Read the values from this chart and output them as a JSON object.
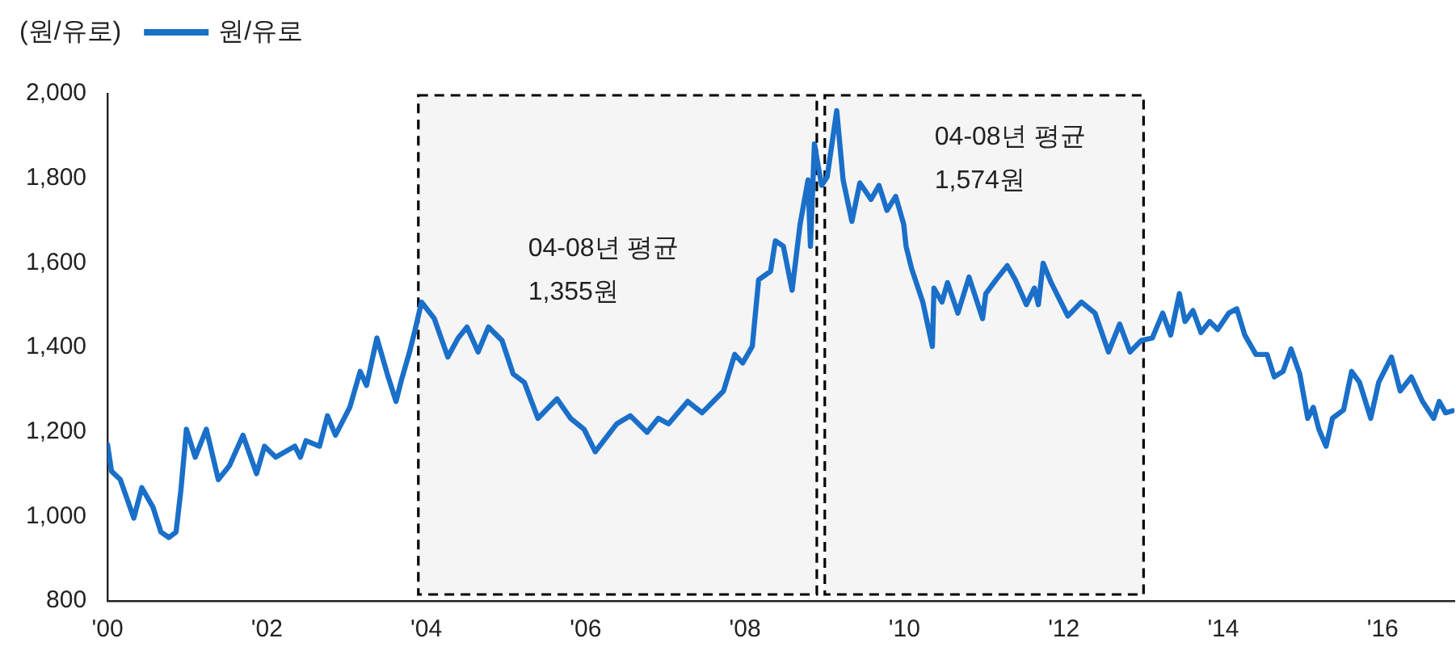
{
  "chart_data": {
    "type": "line",
    "ylabel": "(원/유로)",
    "legend": "top left",
    "grid": false,
    "xlim": [
      2000,
      2016.9
    ],
    "xticks": [
      {
        "value": 2000,
        "label": "'00"
      },
      {
        "value": 2002,
        "label": "'02"
      },
      {
        "value": 2004,
        "label": "'04"
      },
      {
        "value": 2006,
        "label": "'06"
      },
      {
        "value": 2008,
        "label": "'08"
      },
      {
        "value": 2010,
        "label": "'10"
      },
      {
        "value": 2012,
        "label": "'12"
      },
      {
        "value": 2014,
        "label": "'14"
      },
      {
        "value": 2016,
        "label": "'16"
      }
    ],
    "ylim": [
      800,
      2000
    ],
    "yticks": [
      {
        "value": 800,
        "label": "800"
      },
      {
        "value": 1000,
        "label": "1,000"
      },
      {
        "value": 1200,
        "label": "1,200"
      },
      {
        "value": 1400,
        "label": "1,400"
      },
      {
        "value": 1600,
        "label": "1,600"
      },
      {
        "value": 1800,
        "label": "1,800"
      },
      {
        "value": 2000,
        "label": "2,000"
      }
    ],
    "bands": [
      {
        "axis": "x",
        "from": 2003.9,
        "to": 2008.9,
        "label": "04-08년 평균\n1,355원",
        "color": "#000000"
      },
      {
        "axis": "x",
        "from": 2009.0,
        "to": 2013.0,
        "label": "04-08년 평균\n1,574원",
        "color": "#000000"
      }
    ],
    "series": [
      {
        "name": "원/유로",
        "color": "#1a6fc9",
        "x": [
          2000.0,
          2000.05,
          2000.16,
          2000.33,
          2000.43,
          2000.57,
          2000.67,
          2000.77,
          2000.86,
          2000.92,
          2000.99,
          2001.1,
          2001.24,
          2001.39,
          2001.53,
          2001.7,
          2001.87,
          2001.97,
          2002.11,
          2002.35,
          2002.42,
          2002.49,
          2002.66,
          2002.76,
          2002.86,
          2003.04,
          2003.17,
          2003.25,
          2003.38,
          2003.51,
          2003.62,
          2003.69,
          2003.79,
          2003.86,
          2003.94,
          2004.1,
          2004.27,
          2004.4,
          2004.51,
          2004.65,
          2004.78,
          2004.95,
          2005.09,
          2005.23,
          2005.4,
          2005.64,
          2005.81,
          2005.98,
          2006.12,
          2006.39,
          2006.56,
          2006.77,
          2006.91,
          2007.04,
          2007.28,
          2007.46,
          2007.73,
          2007.87,
          2007.97,
          2008.09,
          2008.17,
          2008.32,
          2008.38,
          2008.48,
          2008.59,
          2008.69,
          2008.79,
          2008.82,
          2008.87,
          2008.96,
          2009.03,
          2009.15,
          2009.23,
          2009.34,
          2009.44,
          2009.58,
          2009.68,
          2009.78,
          2009.89,
          2009.99,
          2010.02,
          2010.09,
          2010.23,
          2010.35,
          2010.37,
          2010.47,
          2010.54,
          2010.67,
          2010.81,
          2010.98,
          2011.02,
          2011.15,
          2011.29,
          2011.39,
          2011.53,
          2011.63,
          2011.68,
          2011.74,
          2011.84,
          2012.05,
          2012.22,
          2012.39,
          2012.56,
          2012.7,
          2012.83,
          2012.97,
          2013.11,
          2013.24,
          2013.34,
          2013.45,
          2013.52,
          2013.62,
          2013.72,
          2013.83,
          2013.93,
          2014.07,
          2014.17,
          2014.27,
          2014.41,
          2014.55,
          2014.64,
          2014.75,
          2014.85,
          2014.96,
          2015.06,
          2015.13,
          2015.2,
          2015.29,
          2015.37,
          2015.51,
          2015.61,
          2015.71,
          2015.85,
          2015.95,
          2016.11,
          2016.22,
          2016.36,
          2016.5,
          2016.64,
          2016.71,
          2016.79,
          2016.88
        ],
        "values": [
          1170,
          1107,
          1087,
          996,
          1068,
          1022,
          963,
          950,
          963,
          1061,
          1206,
          1140,
          1206,
          1087,
          1120,
          1192,
          1101,
          1166,
          1140,
          1166,
          1140,
          1179,
          1166,
          1238,
          1192,
          1258,
          1343,
          1310,
          1422,
          1337,
          1272,
          1324,
          1389,
          1442,
          1507,
          1468,
          1377,
          1422,
          1448,
          1389,
          1448,
          1416,
          1337,
          1317,
          1232,
          1278,
          1232,
          1206,
          1153,
          1219,
          1238,
          1199,
          1232,
          1219,
          1272,
          1245,
          1297,
          1383,
          1363,
          1402,
          1560,
          1580,
          1652,
          1639,
          1535,
          1691,
          1796,
          1639,
          1881,
          1783,
          1803,
          1960,
          1796,
          1698,
          1789,
          1750,
          1783,
          1724,
          1757,
          1691,
          1639,
          1586,
          1507,
          1402,
          1540,
          1507,
          1553,
          1481,
          1566,
          1468,
          1527,
          1560,
          1593,
          1560,
          1501,
          1540,
          1501,
          1599,
          1553,
          1474,
          1507,
          1481,
          1389,
          1455,
          1389,
          1416,
          1422,
          1481,
          1429,
          1527,
          1461,
          1487,
          1435,
          1461,
          1442,
          1481,
          1491,
          1429,
          1383,
          1383,
          1330,
          1343,
          1396,
          1337,
          1232,
          1258,
          1206,
          1166,
          1232,
          1252,
          1343,
          1317,
          1232,
          1317,
          1377,
          1297,
          1330,
          1272,
          1232,
          1272,
          1245,
          1250
        ]
      }
    ]
  }
}
